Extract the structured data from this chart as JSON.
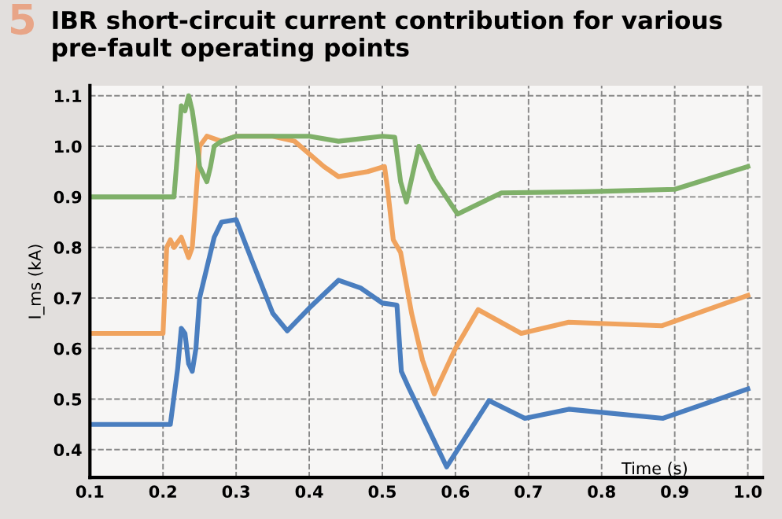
{
  "chart_data": {
    "type": "line",
    "title": "IBR short-circuit current contribution for various pre-fault operating points",
    "annotations": [
      "5"
    ],
    "xlabel": "Time (s)",
    "ylabel": "I_ms (kA)",
    "series": [
      {
        "color": "#4a7ebf",
        "x": [
          0.1,
          0.21,
          0.22,
          0.225,
          0.23,
          0.235,
          0.24,
          0.245,
          0.25,
          0.27,
          0.28,
          0.3,
          0.32,
          0.35,
          0.37,
          0.4,
          0.44,
          0.47,
          0.5,
          0.52,
          0.526,
          0.535,
          0.588,
          0.646,
          0.695,
          0.755,
          0.884,
          1.0
        ],
        "values": [
          0.45,
          0.45,
          0.56,
          0.64,
          0.63,
          0.57,
          0.555,
          0.6,
          0.7,
          0.82,
          0.85,
          0.855,
          0.78,
          0.67,
          0.635,
          0.68,
          0.735,
          0.72,
          0.69,
          0.686,
          0.555,
          0.526,
          0.366,
          0.497,
          0.462,
          0.48,
          0.462,
          0.52
        ]
      },
      {
        "color": "#f0a35e",
        "x": [
          0.1,
          0.2,
          0.205,
          0.21,
          0.215,
          0.225,
          0.235,
          0.24,
          0.245,
          0.25,
          0.26,
          0.28,
          0.3,
          0.35,
          0.38,
          0.42,
          0.44,
          0.48,
          0.503,
          0.507,
          0.515,
          0.525,
          0.54,
          0.555,
          0.571,
          0.6,
          0.631,
          0.69,
          0.755,
          0.882,
          1.0
        ],
        "values": [
          0.63,
          0.63,
          0.8,
          0.815,
          0.8,
          0.82,
          0.78,
          0.8,
          0.9,
          1.0,
          1.02,
          1.01,
          1.02,
          1.02,
          1.01,
          0.96,
          0.94,
          0.95,
          0.96,
          0.918,
          0.815,
          0.79,
          0.67,
          0.577,
          0.51,
          0.6,
          0.677,
          0.63,
          0.652,
          0.645,
          0.705
        ]
      },
      {
        "color": "#7fb069",
        "x": [
          0.1,
          0.215,
          0.225,
          0.23,
          0.235,
          0.24,
          0.245,
          0.25,
          0.26,
          0.265,
          0.27,
          0.28,
          0.3,
          0.4,
          0.44,
          0.5,
          0.517,
          0.525,
          0.533,
          0.55,
          0.571,
          0.603,
          0.663,
          0.776,
          0.9,
          1.0
        ],
        "values": [
          0.9,
          0.9,
          1.08,
          1.07,
          1.1,
          1.07,
          1.02,
          0.96,
          0.93,
          0.96,
          1.0,
          1.01,
          1.02,
          1.02,
          1.01,
          1.02,
          1.018,
          0.93,
          0.89,
          1.0,
          0.935,
          0.866,
          0.908,
          0.91,
          0.915,
          0.96
        ]
      }
    ],
    "xlim": [
      0.1,
      1.02
    ],
    "ylim": [
      0.345,
      1.12
    ],
    "xticks": [
      0.1,
      0.2,
      0.3,
      0.4,
      0.5,
      0.6,
      0.7,
      0.8,
      0.9,
      {
        "value": 1.0,
        "label": "1.0"
      }
    ],
    "yticks": [
      0.4,
      0.5,
      0.6,
      0.7,
      0.8,
      0.9,
      {
        "value": 1.0,
        "label": "1.0"
      },
      1.1
    ],
    "grid": true,
    "legend": false,
    "marker": "none",
    "line_style": "solid"
  }
}
